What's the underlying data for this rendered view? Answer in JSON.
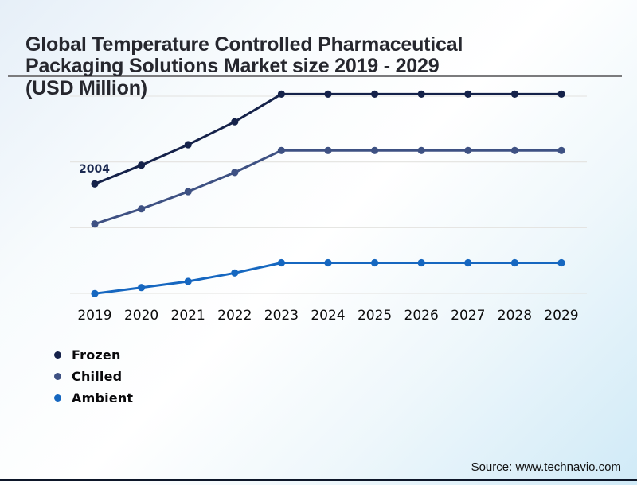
{
  "page": {
    "title": "Global Temperature Controlled Pharmaceutical Packaging Solutions Market size 2019 - 2029 (USD Million)",
    "title_lines": [
      "Global Temperature Controlled Pharmaceutical",
      "Packaging Solutions Market size 2019 - 2029",
      "(USD Million)"
    ],
    "source_text": "Source: www.technavio.com"
  },
  "colors": {
    "frozen": "#15224a",
    "chilled": "#3e5183",
    "ambient": "#1667c0",
    "title_rule": "#7b7b7d",
    "bottom_rule": "#0d1628",
    "gridline": "#e3e2df",
    "title_text": "#26272e",
    "annotation_text": "#1c2a52"
  },
  "chart_data": {
    "type": "line",
    "title": "Global Temperature Controlled Pharmaceutical Packaging Solutions Market size 2019 - 2029 (USD Million)",
    "xlabel": "",
    "ylabel": "USD Million",
    "x": [
      "2019",
      "2020",
      "2021",
      "2022",
      "2023",
      "2024",
      "2025",
      "2026",
      "2027",
      "2028",
      "2029"
    ],
    "series": [
      {
        "name": "Frozen",
        "color": "#15224a",
        "values": [
          2004,
          2318,
          2660,
          3042,
          3505,
          3505,
          3505,
          3505,
          3505,
          3505,
          3505
        ]
      },
      {
        "name": "Chilled",
        "color": "#3e5183",
        "values": [
          1334,
          1587,
          1875,
          2195,
          2563,
          2563,
          2563,
          2563,
          2563,
          2563,
          2563
        ]
      },
      {
        "name": "Ambient",
        "color": "#1667c0",
        "values": [
          169,
          270,
          372,
          515,
          685,
          685,
          685,
          685,
          685,
          685,
          685
        ]
      }
    ],
    "annotations": [
      {
        "text": "2004",
        "series": "Frozen",
        "x": "2019",
        "value": 2004
      }
    ],
    "ylim": [
      0,
      3800
    ],
    "y_axis_visible": false,
    "grid": "horizontal",
    "legend_position": "bottom-left",
    "markers": true
  }
}
